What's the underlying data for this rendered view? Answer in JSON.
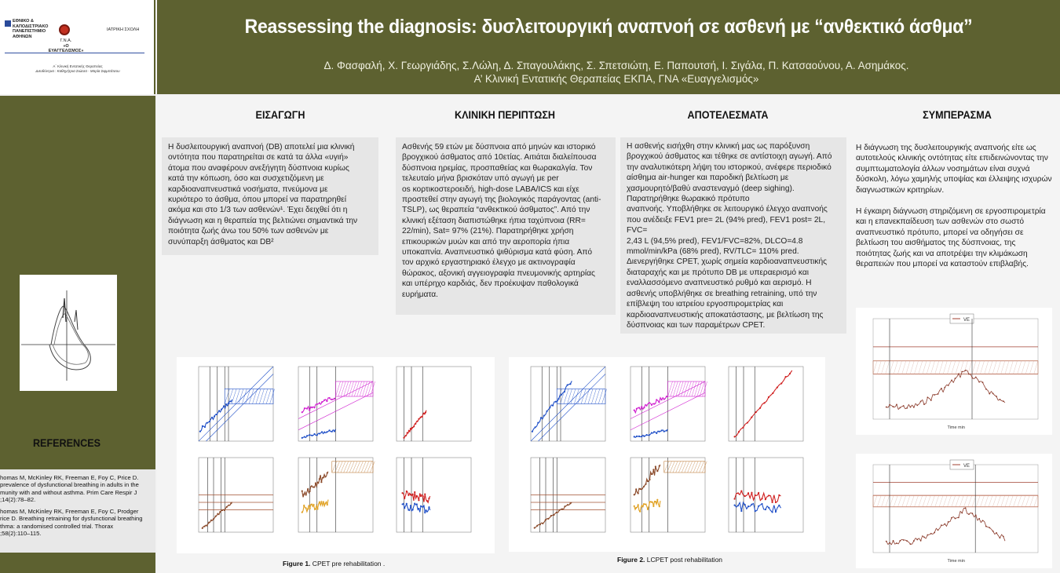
{
  "header": {
    "title": "Reassessing the diagnosis: δυσλειτουργική αναπνοή σε ασθενή με “ανθεκτικό άσθμα”",
    "authors": "Δ. Φασφαλή, Χ. Γεωργιάδης, Σ.Λώλη, Δ. Σπαγουλάκης, Σ. Σπετσιώτη, Ε. Παπουτσή, Ι. Σιγάλα, Π. Κατσαούνου, Α. Ασημάκος.",
    "affiliation": "Α’ Κλινική Εντατικής Θεραπείας ΕΚΠΑ, ΓΝΑ «Ευαγγελισμός»"
  },
  "logos": {
    "university_lines": [
      "ΕΘΝΙΚΟ &",
      "ΚΑΠΟΔΙΣΤΡΙΑΚΟ",
      "ΠΑΝΕΠΙΣΤΗΜΙΟ",
      "ΑΘΗΝΩΝ"
    ],
    "hospital_lines": [
      "Γ.Ν.Α.",
      "«Ο ΕΥΑΓΓΕΛΙΣΜΟΣ»"
    ],
    "school": "ΙΑΤΡΙΚΗ ΣΧΟΛΗ",
    "clinic": "Α΄ Κλινική Εντατικής Θεραπείας",
    "director": "Διευθύντρια : Καθηγήτρια Σιώτσα - Μαρία Σιφμπάτσου"
  },
  "sections": {
    "intro": {
      "heading": "ΕΙΣΑΓΩΓΗ",
      "lines": [
        "Η δυσλειτουργική αναπνοή (DB) αποτελεί μια κλινική",
        "οντότητα που παρατηρείται σε κατά τα άλλα «υγιή»",
        "άτομα που αναφέρουν ανεξήγητη δύσπνοια κυρίως",
        "κατά την κόπωση, όσο και συσχετιζόμενη με",
        "καρδιοαναπνευστικά νοσήματα, πνεύμονα με",
        "κυριότερο το άσθμα, όπου μπορεί να παρατηρηθεί",
        "ακόμα και στο 1/3 των ασθενών¹. Έχει δειχθεί ότι η",
        "διάγνωση και η θεραπεία της βελτιώνει σημαντικά την",
        "ποιότητα ζωής άνω του 50% των ασθενών με",
        "συνύπαρξη άσθματος και DB²"
      ]
    },
    "case": {
      "heading": "ΚΛΙΝΙΚΗ ΠΕΡΙΠΤΩΣΗ",
      "lines": [
        "Ασθενής 59 ετών με δύσπνοια από μηνών και ιστορικό",
        "βρογχικού άσθματος από 10ετίας. Αιτιάται διαλείπουσα",
        "δύσπνοια ηρεμίας, προσπαθείας και θωρακαλγία. Τον",
        "τελευταίο μήνα βρισκόταν υπό αγωγή με per",
        "os  κορτικοστεροειδή, high-dose LABA/ICS και είχε",
        "προστεθεί στην αγωγή της βιολογικός παράγοντας (anti-",
        "TSLP), ως θεραπεία “ανθεκτικού άσθματος”. Από την",
        "κλινική εξέταση διαπιστώθηκε ήπια ταχύπνοια (RR=",
        "22/min), Sat= 97% (21%). Παρατηρήθηκε χρήση",
        "επικουρικών μυών και από την αεροπορία ήπια",
        "υποκαπνία. Αναπνευστικό ψιθύρισμα κατά φύση. Από",
        "τον αρχικό εργαστηριακό έλεγχο με ακτινογραφία",
        "θώρακος, αξονική αγγειογραφία πνευμονικής αρτηρίας",
        "και υπέρηχο καρδιάς, δεν προέκυψαν παθολογικά",
        "ευρήματα."
      ]
    },
    "results": {
      "heading": "ΑΠΟΤΕΛΕΣΜΑΤΑ",
      "lines": [
        "Η ασθενής εισήχθη στην κλινική μας ως παρόξυνση",
        "βρογχικού άσθματος και τέθηκε σε αντίστοιχη αγωγή. Από",
        "την αναλυτικότερη λήψη του ιστορικού, ανέφερε περιοδικό",
        "αίσθημα air-hunger και παροδική βελτίωση με",
        "χασμουρητό/βαθύ αναστεναγμό (deep sighing).",
        "Παρατηρήθηκε θωρακικό πρότυπο",
        "αναπνοής. Υποβλήθηκε σε λειτουργικό έλεγχο αναπνοής",
        "που ανέδειξε FEV1 pre= 2L (94% pred), FEV1 post= 2L,  FVC=",
        "2,43 L (94,5% pred), FEV1/FVC=82%, DLCO=4.8",
        "mmol/min/kPa (68% pred), RV/TLC= 110% pred.",
        "Διενεργήθηκε CPET, χωρίς σημεία καρδιοαναπνευστικής",
        "διαταραχής και με πρότυπο DB με υπεραερισμό και",
        "εναλλασσόμενο αναπνευστικό ρυθμό και αερισμό.  Η",
        "ασθενής υποβλήθηκε σε breathing retraining, υπό την",
        "επίβλεψη του ιατρείου εργοσπιρομετρίας και",
        "καρδιοαναπνευστικής αποκατάστασης, με βελτίωση της",
        "δύσπνοιας και των παραμέτρων CPET."
      ]
    },
    "conclusion": {
      "heading": "ΣΥΜΠΕΡΑΣΜΑ",
      "p1": [
        "Η διάγνωση της δυσλειτουργικής αναπνοής είτε ως",
        "αυτοτελούς κλινικής οντότητας είτε επιδεινώνοντας την",
        "συμπτωματολογία άλλων νοσημάτων είναι συχνά",
        "δύσκολη, λόγω χαμηλής υποψίας και έλλειψης ισχυρών",
        "διαγνωστικών κριτηρίων."
      ],
      "p2": [
        "Η έγκαιρη διάγνωση στηριζόμενη σε εργοσπιρομετρία",
        "και η επανεκπαίδευση των ασθενών στο σωστό",
        "αναπνευστικό πρότυπο, μπορεί να οδηγήσει σε",
        "βελτίωση του αισθήματος της δύσπνοιας, της",
        "ποιότητας ζωής και να αποτρέψει την κλιμάκωση",
        "θεραπειών που μπορεί να καταστούν επιβλαβής."
      ]
    }
  },
  "figures": {
    "fig1_label": "Figure 1.",
    "fig1_caption": " CPET pre rehabilitation .",
    "fig2_label": "Figure 2.",
    "fig2_caption": " LCPET post rehabilitation",
    "ve_legend": "VE",
    "time_label": "Time min"
  },
  "references": {
    "heading": "REFERENCES",
    "lines": [
      "homas M, McKinley RK, Freeman E, Foy C, Price D.",
      " prevalence of dysfunctional breathing in adults in the",
      "munity with and without asthma. Prim Care Respir J",
      ";14(2):78–82.",
      "",
      "homas M, McKinley RK, Freeman E, Foy C, Prodger",
      "rice D. Breathing retraining for dysfunctional breathing",
      "thma: a randomised controlled trial. Thorax",
      ";58(2):110–115."
    ]
  },
  "colors": {
    "olive": "#5d6130",
    "blue": "#2050c8",
    "magenta": "#d020d0",
    "red": "#d02020",
    "brown": "#8b4a2a",
    "orange": "#e0a020"
  }
}
